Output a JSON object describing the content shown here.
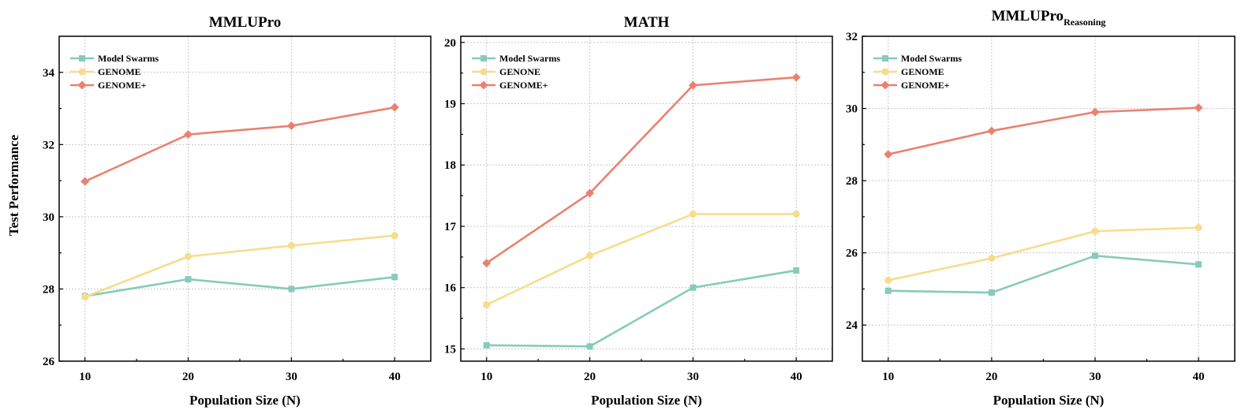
{
  "figure": {
    "ylabel": "Test Performance",
    "xlabel": "Population Size (N)"
  },
  "chart_data": [
    {
      "type": "line",
      "title": "MMLUPro",
      "title_sub": "",
      "xlabel": "Population Size (N)",
      "ylabel": "Test Performance",
      "x": [
        10,
        20,
        30,
        40
      ],
      "xlim": [
        7.5,
        43.5
      ],
      "ylim": [
        26,
        35
      ],
      "yticks": [
        26,
        28,
        30,
        32,
        34
      ],
      "grid": true,
      "legend_position": "top-left",
      "series": [
        {
          "name": "Model Swarms",
          "color": "#86cbb9",
          "marker": "square",
          "values": [
            27.8,
            28.27,
            28.0,
            28.33
          ]
        },
        {
          "name": "GENOME",
          "color": "#f8dc8b",
          "marker": "circle",
          "values": [
            27.78,
            28.9,
            29.2,
            29.48
          ]
        },
        {
          "name": "GENOME+",
          "color": "#ea8170",
          "marker": "diamond",
          "values": [
            30.98,
            32.28,
            32.52,
            33.03
          ]
        }
      ]
    },
    {
      "type": "line",
      "title": "MATH",
      "title_sub": "",
      "xlabel": "Population Size (N)",
      "ylabel": "",
      "x": [
        10,
        20,
        30,
        40
      ],
      "xlim": [
        7.5,
        43.5
      ],
      "ylim": [
        14.8,
        20.1
      ],
      "yticks": [
        15,
        16,
        17,
        18,
        19,
        20
      ],
      "grid": true,
      "legend_position": "top-left",
      "series": [
        {
          "name": "Model Swarms",
          "color": "#86cbb9",
          "marker": "square",
          "values": [
            15.06,
            15.04,
            16.0,
            16.28
          ]
        },
        {
          "name": "GENONE",
          "color": "#f8dc8b",
          "marker": "circle",
          "values": [
            15.72,
            16.52,
            17.2,
            17.2
          ]
        },
        {
          "name": "GENOME+",
          "color": "#ea8170",
          "marker": "diamond",
          "values": [
            16.4,
            17.54,
            19.3,
            19.43
          ]
        }
      ]
    },
    {
      "type": "line",
      "title": "MMLUPro",
      "title_sub": "Reasoning",
      "xlabel": "Population Size (N)",
      "ylabel": "",
      "x": [
        10,
        20,
        30,
        40
      ],
      "xlim": [
        7.5,
        43.5
      ],
      "ylim": [
        23,
        32
      ],
      "yticks": [
        24,
        26,
        28,
        30,
        32
      ],
      "grid": true,
      "legend_position": "top-left",
      "series": [
        {
          "name": "Model Swarms",
          "color": "#86cbb9",
          "marker": "square",
          "values": [
            24.95,
            24.9,
            25.92,
            25.68
          ]
        },
        {
          "name": "GENOME",
          "color": "#f8dc8b",
          "marker": "circle",
          "values": [
            25.24,
            25.85,
            26.6,
            26.7
          ]
        },
        {
          "name": "GENOME+",
          "color": "#ea8170",
          "marker": "diamond",
          "values": [
            28.73,
            29.38,
            29.9,
            30.02
          ]
        }
      ]
    }
  ]
}
